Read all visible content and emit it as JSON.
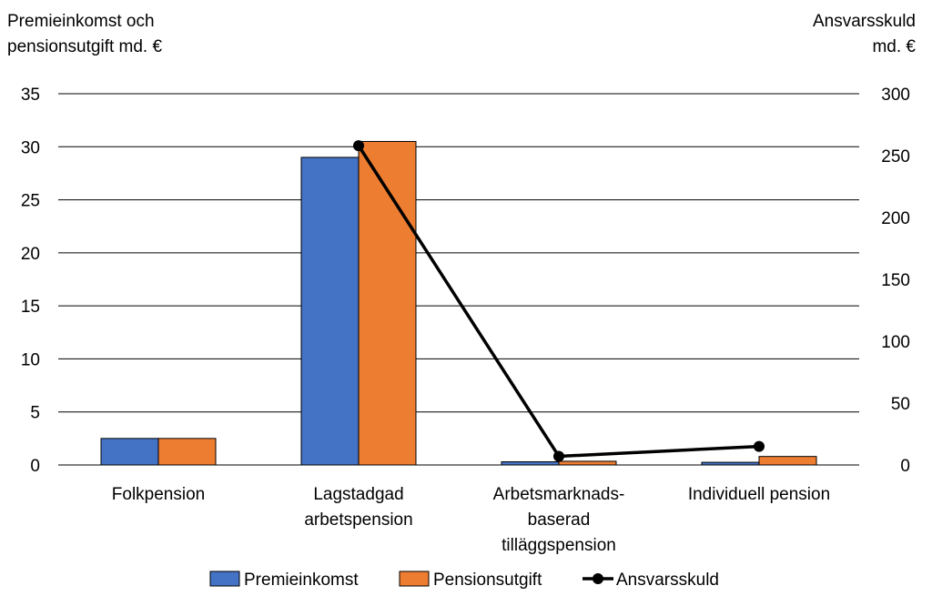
{
  "chart_data": {
    "type": "bar",
    "left_axis_title": [
      "Premieinkomst och",
      "pensionsutgift md. €"
    ],
    "right_axis_title": [
      "Ansvarsskuld",
      "md. €"
    ],
    "categories": [
      [
        "Folkpension"
      ],
      [
        "Lagstadgad",
        "arbetspension"
      ],
      [
        "Arbetsmarknads-",
        "baserad",
        "tilläggspension"
      ],
      [
        "Individuell pension"
      ]
    ],
    "left_ticks": [
      "0",
      "5",
      "10",
      "15",
      "20",
      "25",
      "30",
      "35"
    ],
    "right_ticks": [
      "0",
      "50",
      "100",
      "150",
      "200",
      "250",
      "300"
    ],
    "ylim_left": [
      0,
      35
    ],
    "ylim_right": [
      0,
      300
    ],
    "grid": true,
    "legend_position": "bottom",
    "series": [
      {
        "name": "Premieinkomst",
        "type": "bar",
        "axis": "left",
        "color": "#4472C4",
        "values": [
          2.5,
          29.0,
          0.3,
          0.25
        ]
      },
      {
        "name": "Pensionsutgift",
        "type": "bar",
        "axis": "left",
        "color": "#ED7D31",
        "values": [
          2.5,
          30.5,
          0.35,
          0.8
        ]
      },
      {
        "name": "Ansvarsskuld",
        "type": "line",
        "axis": "right",
        "color": "#000000",
        "values": [
          null,
          258,
          7,
          15
        ]
      }
    ]
  }
}
